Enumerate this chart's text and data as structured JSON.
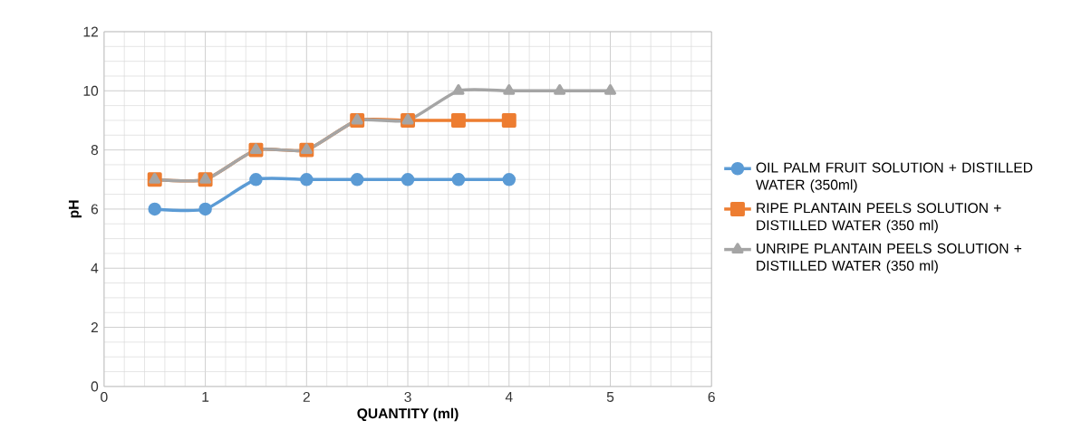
{
  "chart_data": {
    "type": "line",
    "xlabel": "QUANTITY (ml)",
    "ylabel": "pH",
    "xlim": [
      0,
      6
    ],
    "ylim": [
      0,
      12
    ],
    "xticks": [
      0,
      1,
      2,
      3,
      4,
      5,
      6
    ],
    "yticks": [
      0,
      2,
      4,
      6,
      8,
      10,
      12
    ],
    "grid": true,
    "legend": "right",
    "line_style": "solid",
    "series": [
      {
        "name": "OIL PALM FRUIT SOLUTION + DISTILLED WATER (350ml)",
        "color": "#5b9bd5",
        "marker": "circle",
        "x": [
          0.5,
          1,
          1.5,
          2,
          2.5,
          3,
          3.5,
          4
        ],
        "values": [
          6,
          6,
          7,
          7,
          7,
          7,
          7,
          7
        ]
      },
      {
        "name": "RIPE PLANTAIN PEELS SOLUTION + DISTILLED WATER (350 ml)",
        "color": "#ed7d31",
        "marker": "square",
        "x": [
          0.5,
          1,
          1.5,
          2,
          2.5,
          3,
          3.5,
          4
        ],
        "values": [
          7,
          7,
          8,
          8,
          9,
          9,
          9,
          9
        ]
      },
      {
        "name": "UNRIPE PLANTAIN PEELS SOLUTION + DISTILLED WATER (350 ml)",
        "color": "#a5a5a5",
        "marker": "triangle",
        "x": [
          0.5,
          1,
          1.5,
          2,
          2.5,
          3,
          3.5,
          4,
          4.5,
          5
        ],
        "values": [
          7,
          7,
          8,
          8,
          9,
          9,
          10,
          10,
          10,
          10
        ]
      }
    ]
  }
}
